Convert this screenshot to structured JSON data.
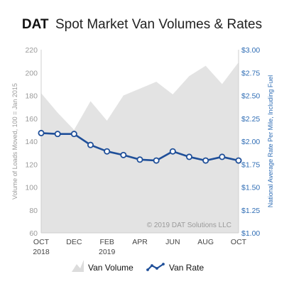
{
  "title": {
    "brand": "DAT",
    "rest": "Spot Market Van Volumes & Rates"
  },
  "copyright": "© 2019 DAT Solutions LLC",
  "colors": {
    "area": "#e3e3e3",
    "line": "#1f4f99",
    "marker_fill": "#ffffff",
    "right_axis": "#2f6db5",
    "left_axis": "#9a9a9a"
  },
  "chart_data": {
    "type": "area+line",
    "x_tick_labels": [
      {
        "month": "OCT",
        "year": "2018"
      },
      {
        "month": "DEC",
        "year": ""
      },
      {
        "month": "FEB",
        "year": "2019"
      },
      {
        "month": "APR",
        "year": ""
      },
      {
        "month": "JUN",
        "year": ""
      },
      {
        "month": "AUG",
        "year": ""
      },
      {
        "month": "OCT",
        "year": ""
      }
    ],
    "left_axis": {
      "label": "Volume of Loads Moved, 100 = Jan 2015",
      "range": [
        60,
        220
      ],
      "ticks": [
        "60",
        "80",
        "100",
        "120",
        "140",
        "160",
        "180",
        "200",
        "220"
      ]
    },
    "right_axis": {
      "label": "National Average Rate Per Mile, Including Fuel",
      "range": [
        1.0,
        3.0
      ],
      "ticks": [
        "$1.00",
        "$1.25",
        "$1.50",
        "$1.75",
        "$2.00",
        "$2.25",
        "$2.50",
        "$2.75",
        "$3.00"
      ]
    },
    "series": [
      {
        "name": "Van Volume",
        "kind": "area",
        "axis": "left",
        "values": [
          182,
          165,
          150,
          175,
          158,
          180,
          186,
          192,
          181,
          197,
          206,
          190,
          209
        ]
      },
      {
        "name": "Van Rate",
        "kind": "line",
        "axis": "right",
        "values": [
          2.09,
          2.08,
          2.08,
          1.96,
          1.89,
          1.85,
          1.8,
          1.79,
          1.89,
          1.83,
          1.79,
          1.83,
          1.79
        ]
      }
    ],
    "grid": false,
    "legend_position": "bottom"
  }
}
